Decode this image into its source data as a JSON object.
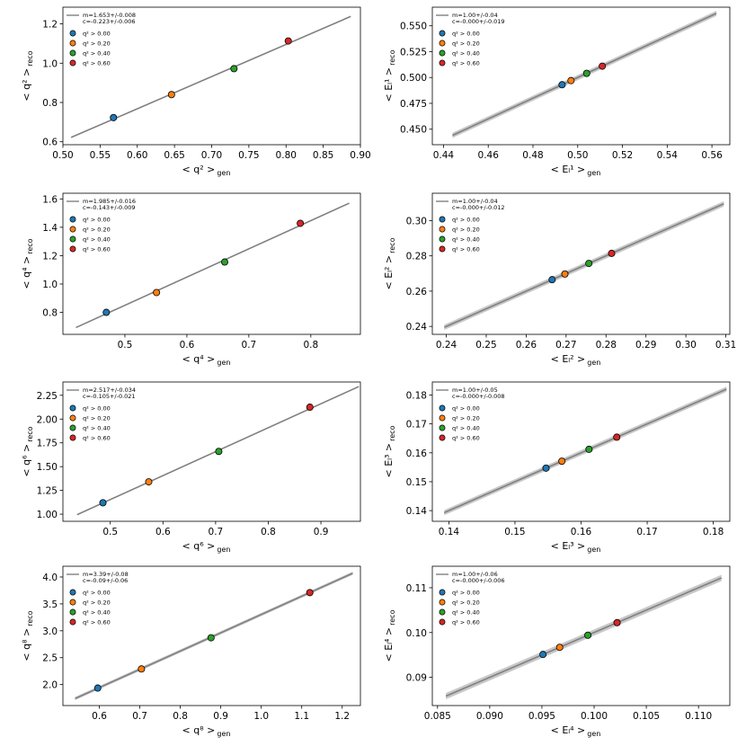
{
  "legend_labels": [
    "q² > 0.00",
    "q² > 0.20",
    "q² > 0.40",
    "q² > 0.60"
  ],
  "series_colors": [
    "#1f77b4",
    "#ff7f0e",
    "#2ca02c",
    "#d62728"
  ],
  "line_color": "#808080",
  "chart_data": [
    {
      "type": "scatter",
      "panel": "q2",
      "xlabel": "< q² >",
      "xlabel_sub": "gen",
      "ylabel": "< q² >",
      "ylabel_sub": "reco",
      "xlim": [
        0.5,
        0.9
      ],
      "ylim": [
        0.585,
        1.285
      ],
      "xticks": [
        0.5,
        0.55,
        0.6,
        0.65,
        0.7,
        0.75,
        0.8,
        0.85,
        0.9
      ],
      "xtick_labels": [
        "0.50",
        "0.55",
        "0.60",
        "0.65",
        "0.70",
        "0.75",
        "0.80",
        "0.85",
        "0.90"
      ],
      "yticks": [
        0.6,
        0.8,
        1.0,
        1.2
      ],
      "ytick_labels": [
        "0.6",
        "0.8",
        "1.0",
        "1.2"
      ],
      "fit_line": [
        [
          0.511,
          0.622
        ],
        [
          0.887,
          1.238
        ]
      ],
      "band": false,
      "fit_text": [
        "m=1.653+/-0.008",
        "c=-0.223+/-0.006"
      ],
      "points": [
        {
          "x": 0.568,
          "y": 0.723
        },
        {
          "x": 0.646,
          "y": 0.84
        },
        {
          "x": 0.73,
          "y": 0.972
        },
        {
          "x": 0.803,
          "y": 1.113
        }
      ]
    },
    {
      "type": "scatter",
      "panel": "E1",
      "xlabel": "< Eₗ¹ >",
      "xlabel_sub": "gen",
      "ylabel": "< Eₗ¹ >",
      "ylabel_sub": "reco",
      "xlim": [
        0.435,
        0.568
      ],
      "ylim": [
        0.435,
        0.568
      ],
      "xticks": [
        0.44,
        0.46,
        0.48,
        0.5,
        0.52,
        0.54,
        0.56
      ],
      "xtick_labels": [
        "0.44",
        "0.46",
        "0.48",
        "0.50",
        "0.52",
        "0.54",
        "0.56"
      ],
      "yticks": [
        0.45,
        0.475,
        0.5,
        0.525,
        0.55
      ],
      "ytick_labels": [
        "0.450",
        "0.475",
        "0.500",
        "0.525",
        "0.550"
      ],
      "fit_line": [
        [
          0.444,
          0.444
        ],
        [
          0.562,
          0.562
        ]
      ],
      "band": true,
      "band_halfwidth": 0.0025,
      "fit_text": [
        "m=1.00+/-0.04",
        "c=-0.000+/-0.019"
      ],
      "points": [
        {
          "x": 0.493,
          "y": 0.493
        },
        {
          "x": 0.497,
          "y": 0.497
        },
        {
          "x": 0.504,
          "y": 0.504
        },
        {
          "x": 0.511,
          "y": 0.511
        }
      ]
    },
    {
      "type": "scatter",
      "panel": "q4",
      "xlabel": "< q⁴ >",
      "xlabel_sub": "gen",
      "ylabel": "< q⁴ >",
      "ylabel_sub": "reco",
      "xlim": [
        0.4,
        0.88
      ],
      "ylim": [
        0.645,
        1.64
      ],
      "xticks": [
        0.5,
        0.6,
        0.7,
        0.8
      ],
      "xtick_labels": [
        "0.5",
        "0.6",
        "0.7",
        "0.8"
      ],
      "yticks": [
        0.8,
        1.0,
        1.2,
        1.4,
        1.6
      ],
      "ytick_labels": [
        "0.8",
        "1.0",
        "1.2",
        "1.4",
        "1.6"
      ],
      "fit_line": [
        [
          0.421,
          0.693
        ],
        [
          0.862,
          1.57
        ]
      ],
      "band": false,
      "fit_text": [
        "m=1.985+/-0.016",
        "c=-0.143+/-0.009"
      ],
      "points": [
        {
          "x": 0.47,
          "y": 0.8
        },
        {
          "x": 0.551,
          "y": 0.94
        },
        {
          "x": 0.661,
          "y": 1.155
        },
        {
          "x": 0.783,
          "y": 1.428
        }
      ]
    },
    {
      "type": "scatter",
      "panel": "E2",
      "xlabel": "< Eₗ² >",
      "xlabel_sub": "gen",
      "ylabel": "< Eₗ² >",
      "ylabel_sub": "reco",
      "xlim": [
        0.2365,
        0.311
      ],
      "ylim": [
        0.2355,
        0.3155
      ],
      "xticks": [
        0.24,
        0.25,
        0.26,
        0.27,
        0.28,
        0.29,
        0.3,
        0.31
      ],
      "xtick_labels": [
        "0.24",
        "0.25",
        "0.26",
        "0.27",
        "0.28",
        "0.29",
        "0.30",
        "0.31"
      ],
      "yticks": [
        0.24,
        0.26,
        0.28,
        0.3
      ],
      "ytick_labels": [
        "0.24",
        "0.26",
        "0.28",
        "0.30"
      ],
      "fit_line": [
        [
          0.2395,
          0.2395
        ],
        [
          0.3095,
          0.3095
        ]
      ],
      "band": true,
      "band_halfwidth": 0.0015,
      "fit_text": [
        "m=1.00+/-0.04",
        "c=-0.000+/-0.012"
      ],
      "points": [
        {
          "x": 0.2665,
          "y": 0.2665
        },
        {
          "x": 0.2697,
          "y": 0.2697
        },
        {
          "x": 0.2757,
          "y": 0.2757
        },
        {
          "x": 0.2814,
          "y": 0.2814
        }
      ]
    },
    {
      "type": "scatter",
      "panel": "q6",
      "xlabel": "< q⁶ >",
      "xlabel_sub": "gen",
      "ylabel": "< q⁶ >",
      "ylabel_sub": "reco",
      "xlim": [
        0.41,
        0.975
      ],
      "ylim": [
        0.925,
        2.39
      ],
      "xticks": [
        0.5,
        0.6,
        0.7,
        0.8,
        0.9
      ],
      "xtick_labels": [
        "0.5",
        "0.6",
        "0.7",
        "0.8",
        "0.9"
      ],
      "yticks": [
        1.0,
        1.25,
        1.5,
        1.75,
        2.0,
        2.25
      ],
      "ytick_labels": [
        "1.00",
        "1.25",
        "1.50",
        "1.75",
        "2.00",
        "2.25"
      ],
      "fit_line": [
        [
          0.437,
          0.995
        ],
        [
          0.972,
          2.342
        ]
      ],
      "band": false,
      "fit_text": [
        "m=2.517+/-0.034",
        "c=-0.105+/-0.021"
      ],
      "points": [
        {
          "x": 0.486,
          "y": 1.12
        },
        {
          "x": 0.573,
          "y": 1.34
        },
        {
          "x": 0.706,
          "y": 1.66
        },
        {
          "x": 0.879,
          "y": 2.125
        }
      ]
    },
    {
      "type": "scatter",
      "panel": "E3",
      "xlabel": "< Eₗ³ >",
      "xlabel_sub": "gen",
      "ylabel": "< Eₗ³ >",
      "ylabel_sub": "reco",
      "xlim": [
        0.1375,
        0.1825
      ],
      "ylim": [
        0.1363,
        0.1845
      ],
      "xticks": [
        0.14,
        0.15,
        0.16,
        0.17,
        0.18
      ],
      "xtick_labels": [
        "0.14",
        "0.15",
        "0.16",
        "0.17",
        "0.18"
      ],
      "yticks": [
        0.14,
        0.15,
        0.16,
        0.17,
        0.18
      ],
      "ytick_labels": [
        "0.14",
        "0.15",
        "0.16",
        "0.17",
        "0.18"
      ],
      "fit_line": [
        [
          0.1393,
          0.1393
        ],
        [
          0.182,
          0.182
        ]
      ],
      "band": true,
      "band_halfwidth": 0.0009,
      "fit_text": [
        "m=1.00+/-0.05",
        "c=-0.000+/-0.008"
      ],
      "points": [
        {
          "x": 0.1547,
          "y": 0.1547
        },
        {
          "x": 0.1571,
          "y": 0.1571
        },
        {
          "x": 0.1612,
          "y": 0.1612
        },
        {
          "x": 0.1654,
          "y": 0.1654
        }
      ]
    },
    {
      "type": "scatter",
      "panel": "q8",
      "xlabel": "< q⁸ >",
      "xlabel_sub": "gen",
      "ylabel": "< q⁸ >",
      "ylabel_sub": "reco",
      "xlim": [
        0.51,
        1.245
      ],
      "ylim": [
        1.61,
        4.2
      ],
      "xticks": [
        0.6,
        0.7,
        0.8,
        0.9,
        1.0,
        1.1,
        1.2
      ],
      "xtick_labels": [
        "0.6",
        "0.7",
        "0.8",
        "0.9",
        "1.0",
        "1.1",
        "1.2"
      ],
      "yticks": [
        2.0,
        2.5,
        3.0,
        3.5,
        4.0
      ],
      "ytick_labels": [
        "2.0",
        "2.5",
        "3.0",
        "3.5",
        "4.0"
      ],
      "fit_line": [
        [
          0.54,
          1.74
        ],
        [
          1.226,
          4.07
        ]
      ],
      "band": true,
      "band_halfwidth": 0.03,
      "fit_text": [
        "m=3.39+/-0.08",
        "c=-0.09+/-0.06"
      ],
      "points": [
        {
          "x": 0.596,
          "y": 1.935
        },
        {
          "x": 0.704,
          "y": 2.29
        },
        {
          "x": 0.876,
          "y": 2.87
        },
        {
          "x": 1.12,
          "y": 3.71
        }
      ]
    },
    {
      "type": "scatter",
      "panel": "E4",
      "xlabel": "< Eₗ⁴ >",
      "xlabel_sub": "gen",
      "ylabel": "< Eₗ⁴ >",
      "ylabel_sub": "reco",
      "xlim": [
        0.0845,
        0.113
      ],
      "ylim": [
        0.0837,
        0.1148
      ],
      "xticks": [
        0.085,
        0.09,
        0.095,
        0.1,
        0.105,
        0.11
      ],
      "xtick_labels": [
        "0.085",
        "0.090",
        "0.095",
        "0.100",
        "0.105",
        "0.110"
      ],
      "yticks": [
        0.09,
        0.1,
        0.11
      ],
      "ytick_labels": [
        "0.09",
        "0.10",
        "0.11"
      ],
      "fit_line": [
        [
          0.0858,
          0.0858
        ],
        [
          0.1122,
          0.1122
        ]
      ],
      "band": true,
      "band_halfwidth": 0.0007,
      "fit_text": [
        "m=1.00+/-0.06",
        "c=-0.000+/-0.006"
      ],
      "points": [
        {
          "x": 0.0951,
          "y": 0.0951
        },
        {
          "x": 0.0967,
          "y": 0.0967
        },
        {
          "x": 0.0994,
          "y": 0.0994
        },
        {
          "x": 0.1022,
          "y": 0.1022
        }
      ]
    }
  ]
}
